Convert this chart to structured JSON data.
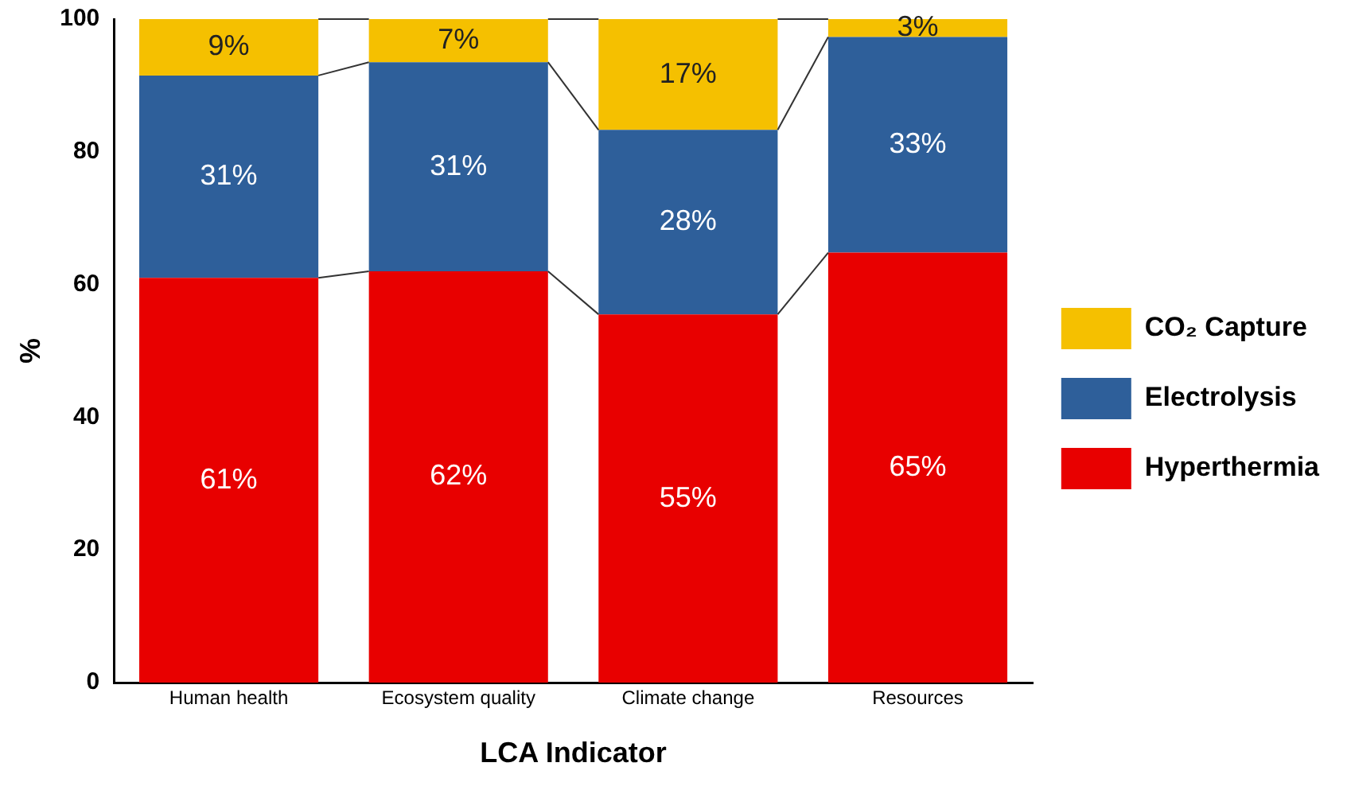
{
  "chart_data": {
    "type": "bar",
    "stacked": true,
    "xlabel": "LCA Indicator",
    "ylabel": "%",
    "categories": [
      "Human health",
      "Ecosystem quality",
      "Climate change",
      "Resources"
    ],
    "series": [
      {
        "name": "Hyperthermia",
        "color": "#e80000",
        "values": [
          61,
          62,
          55.5,
          64.8
        ],
        "value_labels": [
          "61%",
          "62%",
          "55%",
          "65%"
        ]
      },
      {
        "name": "Electrolysis",
        "color": "#2e5f9a",
        "values": [
          30.5,
          31.5,
          27.8,
          32.5
        ],
        "value_labels": [
          "31%",
          "31%",
          "28%",
          "33%"
        ]
      },
      {
        "name": "CO₂ Capture",
        "color": "#f5c000",
        "values": [
          8.5,
          6.5,
          16.7,
          2.7
        ],
        "value_labels": [
          "9%",
          "7%",
          "17%",
          "3%"
        ]
      }
    ],
    "ylim": [
      0,
      100
    ],
    "yticks": [
      0,
      20,
      40,
      60,
      80,
      100
    ],
    "grid": false,
    "legend": "right"
  }
}
